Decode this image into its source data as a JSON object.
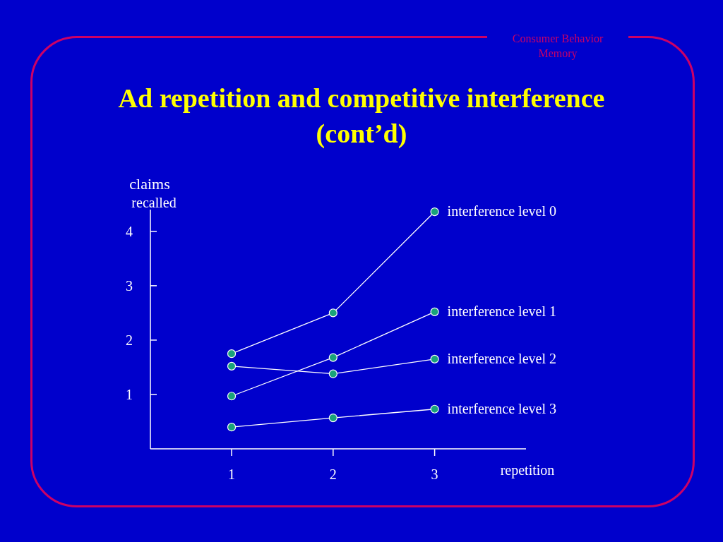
{
  "chart_data": {
    "type": "line",
    "title": "Ad repetition and competitive interference (cont’d)",
    "annotations": [
      "Consumer Behavior\nMemory"
    ],
    "xlabel": "repetition",
    "ylabel": "claims\nrecalled",
    "x": [
      1,
      2,
      3
    ],
    "xlim": [
      0.2,
      3.9
    ],
    "xticks": [
      1,
      2,
      3
    ],
    "ylim": [
      0,
      4.4
    ],
    "yticks": [
      1,
      2,
      3,
      4
    ],
    "marker": "circle",
    "line_style": "solid",
    "grid": false,
    "series": [
      {
        "name": "interference level 0",
        "color": "#ffffff",
        "values": [
          1.75,
          2.5,
          4.36
        ]
      },
      {
        "name": "interference level 1",
        "color": "#ffffff",
        "values": [
          0.97,
          1.68,
          2.52
        ]
      },
      {
        "name": "interference level 2",
        "color": "#ffffff",
        "values": [
          1.52,
          1.38,
          1.65
        ]
      },
      {
        "name": "interference level 3",
        "color": "#ffffff",
        "values": [
          0.4,
          0.57,
          0.73
        ]
      }
    ]
  }
}
